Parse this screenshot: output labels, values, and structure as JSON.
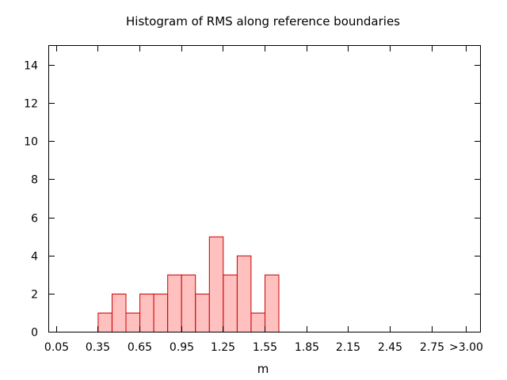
{
  "chart_data": {
    "type": "bar",
    "title": "Histogram of RMS along reference boundaries",
    "xlabel": "m",
    "ylabel": "",
    "xlim": [
      0,
      3.1
    ],
    "ylim": [
      0,
      15
    ],
    "x_tick_values": [
      0.05,
      0.35,
      0.65,
      0.95,
      1.25,
      1.55,
      1.85,
      2.15,
      2.45,
      2.75,
      3.0
    ],
    "x_tick_labels": [
      "0.05",
      "0.35",
      "0.65",
      "0.95",
      "1.25",
      "1.55",
      "1.85",
      "2.15",
      "2.45",
      "2.75",
      ">3.00"
    ],
    "y_ticks": [
      0,
      2,
      4,
      6,
      8,
      10,
      12,
      14
    ],
    "bin_width": 0.1,
    "bins": [
      {
        "x": 0.4,
        "value": 1
      },
      {
        "x": 0.5,
        "value": 2
      },
      {
        "x": 0.6,
        "value": 1
      },
      {
        "x": 0.7,
        "value": 2
      },
      {
        "x": 0.8,
        "value": 2
      },
      {
        "x": 0.9,
        "value": 3
      },
      {
        "x": 1.0,
        "value": 3
      },
      {
        "x": 1.1,
        "value": 2
      },
      {
        "x": 1.2,
        "value": 5
      },
      {
        "x": 1.3,
        "value": 3
      },
      {
        "x": 1.4,
        "value": 4
      },
      {
        "x": 1.5,
        "value": 1
      },
      {
        "x": 1.6,
        "value": 3
      }
    ],
    "grid": false,
    "legend": "none",
    "colors": {
      "bar_fill": "#ffc0c0",
      "bar_stroke": "#cc0000"
    }
  }
}
